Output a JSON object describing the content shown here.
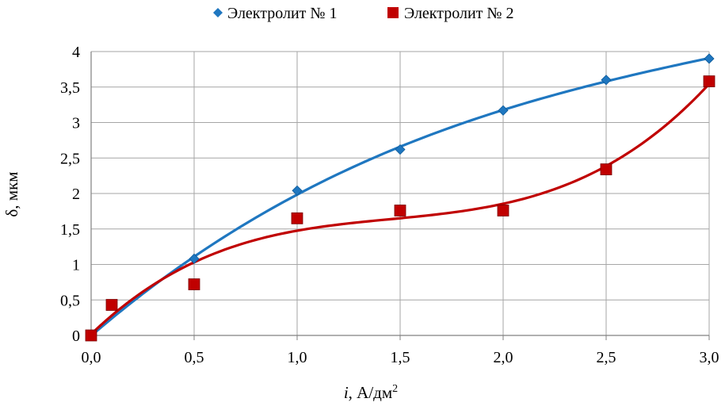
{
  "chart_data": {
    "type": "scatter",
    "title": "",
    "xlabel_italic": "i",
    "xlabel_rest": ", А/дм",
    "xlabel_sup": "2",
    "ylabel": "δ, мкм",
    "xlim": [
      0,
      3
    ],
    "ylim": [
      0,
      4
    ],
    "x_ticks": [
      "0,0",
      "0,5",
      "1,0",
      "1,5",
      "2,0",
      "2,5",
      "3,0"
    ],
    "x_tick_values": [
      0,
      0.5,
      1.0,
      1.5,
      2.0,
      2.5,
      3.0
    ],
    "y_ticks": [
      "0",
      "0,5",
      "1",
      "1,5",
      "2",
      "2,5",
      "3",
      "3,5",
      "4"
    ],
    "y_tick_values": [
      0,
      0.5,
      1,
      1.5,
      2,
      2.5,
      3,
      3.5,
      4
    ],
    "grid": true,
    "legend_position": "top",
    "series": [
      {
        "name": "Электролит № 1",
        "marker": "diamond",
        "color": "#1f77c0",
        "points": [
          [
            0,
            0
          ],
          [
            0.5,
            1.08
          ],
          [
            1.0,
            2.04
          ],
          [
            1.5,
            2.62
          ],
          [
            2.0,
            3.17
          ],
          [
            2.5,
            3.6
          ],
          [
            3.0,
            3.9
          ]
        ],
        "trend": "smooth"
      },
      {
        "name": "Электролит № 2",
        "marker": "square",
        "color": "#c00000",
        "points": [
          [
            0,
            0
          ],
          [
            0.1,
            0.43
          ],
          [
            0.5,
            0.72
          ],
          [
            1.0,
            1.65
          ],
          [
            1.5,
            1.76
          ],
          [
            2.0,
            1.76
          ],
          [
            2.5,
            2.34
          ],
          [
            3.0,
            3.58
          ]
        ],
        "trend": "polynomial"
      }
    ]
  }
}
